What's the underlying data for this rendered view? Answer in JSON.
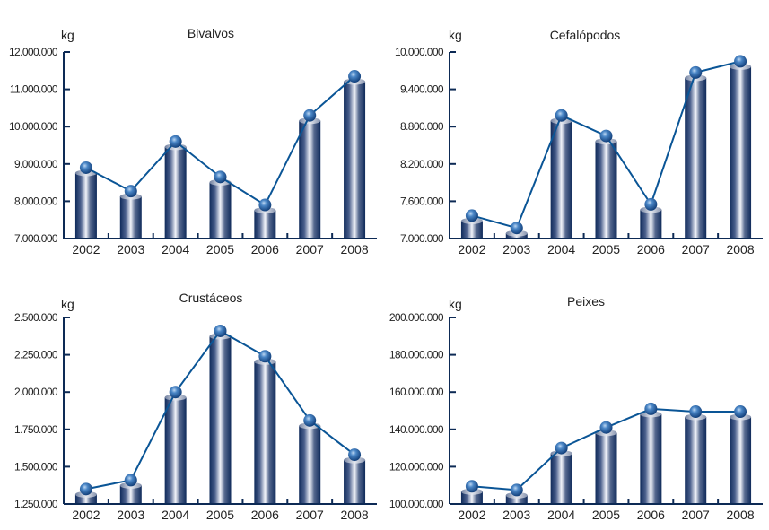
{
  "chart_data": [
    {
      "type": "bar",
      "title": "Bivalvos",
      "ylabel": "kg",
      "xlabel": "",
      "categories": [
        "2002",
        "2003",
        "2004",
        "2005",
        "2006",
        "2007",
        "2008"
      ],
      "values": [
        8900000,
        8270000,
        9600000,
        8650000,
        7900000,
        10300000,
        11350000
      ],
      "ylim": [
        7000000,
        12000000
      ],
      "yticks": [
        7000000,
        8000000,
        9000000,
        10000000,
        11000000,
        12000000
      ],
      "ytick_labels": [
        "7.000.000",
        "8.000.000",
        "9.000.000",
        "10.000.000",
        "11.000.000",
        "12.000.000"
      ],
      "overlay": "line with sphere markers",
      "grid": false,
      "legend": "none"
    },
    {
      "type": "bar",
      "title": "Cefalópodos",
      "ylabel": "kg",
      "xlabel": "",
      "categories": [
        "2002",
        "2003",
        "2004",
        "2005",
        "2006",
        "2007",
        "2008"
      ],
      "values": [
        7370000,
        7170000,
        8980000,
        8650000,
        7550000,
        9670000,
        9850000
      ],
      "ylim": [
        7000000,
        10000000
      ],
      "yticks": [
        7000000,
        7600000,
        8200000,
        8800000,
        9400000,
        10000000
      ],
      "ytick_labels": [
        "7.000.000",
        "7.600.000",
        "8.200.000",
        "8.800.000",
        "9.400.000",
        "10.000.000"
      ],
      "overlay": "line with sphere markers",
      "grid": false,
      "legend": "none"
    },
    {
      "type": "bar",
      "title": "Crustáceos",
      "ylabel": "kg",
      "xlabel": "",
      "categories": [
        "2002",
        "2003",
        "2004",
        "2005",
        "2006",
        "2007",
        "2008"
      ],
      "values": [
        1350000,
        1410000,
        2000000,
        2410000,
        2240000,
        1810000,
        1580000
      ],
      "ylim": [
        1250000,
        2500000
      ],
      "yticks": [
        1250000,
        1500000,
        1750000,
        2000000,
        2250000,
        2500000
      ],
      "ytick_labels": [
        "1.250.000",
        "1.500.000",
        "1.750.000",
        "2.000.000",
        "2.250.000",
        "2.500.000"
      ],
      "overlay": "line with sphere markers",
      "grid": false,
      "legend": "none"
    },
    {
      "type": "bar",
      "title": "Peixes",
      "ylabel": "kg",
      "xlabel": "",
      "categories": [
        "2002",
        "2003",
        "2004",
        "2005",
        "2006",
        "2007",
        "2008"
      ],
      "values": [
        109500000,
        107500000,
        130000000,
        141000000,
        151000000,
        149500000,
        149500000
      ],
      "ylim": [
        100000000,
        200000000
      ],
      "yticks": [
        100000000,
        120000000,
        140000000,
        160000000,
        180000000,
        200000000
      ],
      "ytick_labels": [
        "100.000.000",
        "120.000.000",
        "140.000.000",
        "160.000.000",
        "180.000.000",
        "200.000.000"
      ],
      "overlay": "line with sphere markers",
      "grid": false,
      "legend": "none"
    }
  ],
  "colors": {
    "axis": "#0d2a55",
    "bar_dark": "#0f2a5a",
    "bar_light": "#e8ecf5",
    "line": "#0a5596",
    "marker": "#2d6cb0"
  }
}
